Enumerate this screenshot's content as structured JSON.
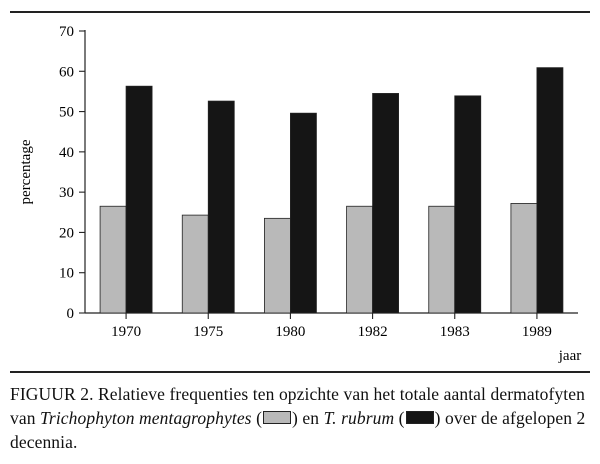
{
  "chart_data": {
    "type": "bar",
    "categories": [
      "1970",
      "1975",
      "1980",
      "1982",
      "1983",
      "1989"
    ],
    "series": [
      {
        "values": [
          26.5,
          24.3,
          23.5,
          26.5,
          26.5,
          27.2
        ],
        "color": "#b9b9b9"
      },
      {
        "values": [
          56.3,
          52.6,
          49.6,
          54.5,
          53.9,
          60.9
        ],
        "color": "#151515"
      }
    ],
    "ylim": [
      0,
      70
    ],
    "yticks": [
      "0",
      "10",
      "20",
      "30",
      "40",
      "50",
      "60",
      "70"
    ],
    "ylabel": "percentage",
    "xlabel": "jaar",
    "grid": false,
    "legend": "none (described in caption)"
  },
  "caption": {
    "label": "FIGUUR 2.",
    "text_1": " Relatieve frequenties ten opzichte van het totale aantal dermatofyten van ",
    "species_1": "Trichophyton mentagrophytes",
    "text_2": " (",
    "text_3": ") en ",
    "species_2": "T. rubrum",
    "text_4": " (",
    "text_5": ") over de afgelopen 2 decennia."
  }
}
